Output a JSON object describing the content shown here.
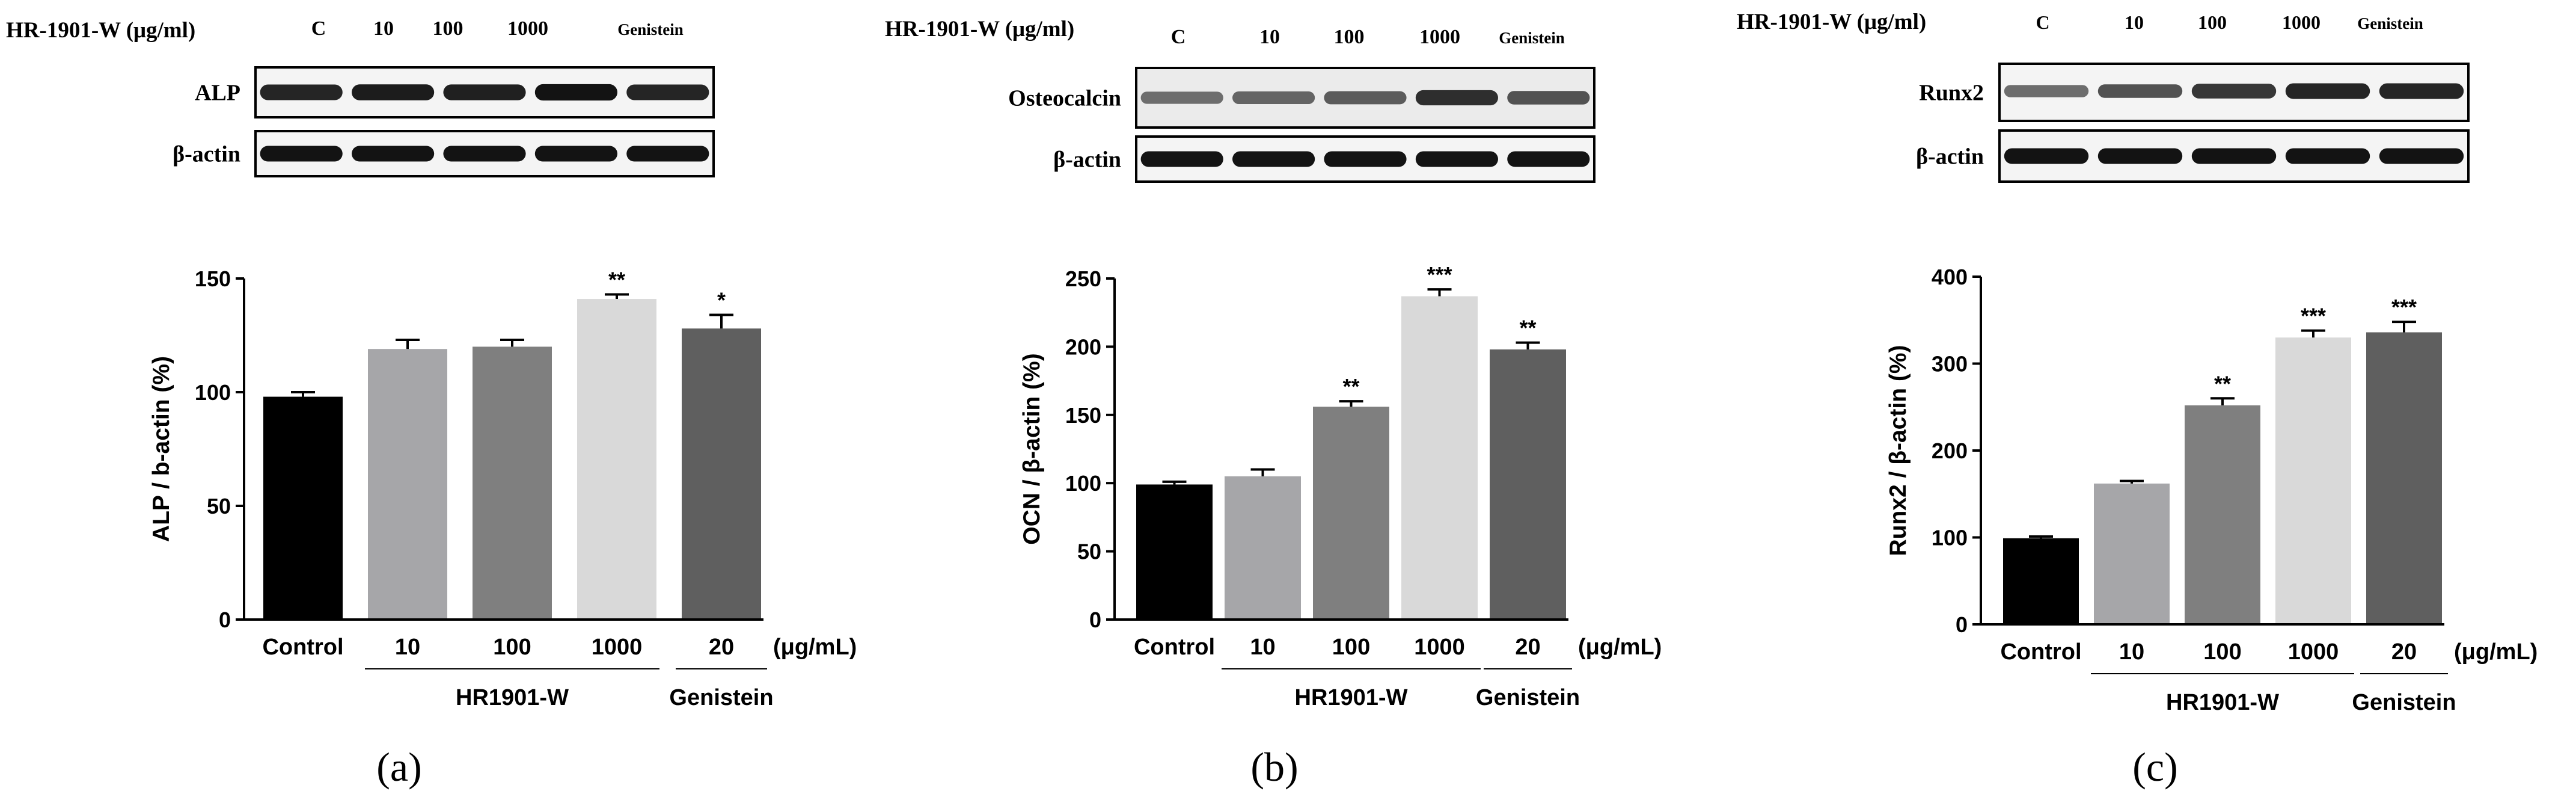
{
  "figure": {
    "colors": {
      "control": "#000000",
      "hr10": "#a6a6a9",
      "hr100": "#7f7f7f",
      "hr1000": "#d9d9d9",
      "genistein": "#5f5f5f"
    },
    "unit_label": "(μg/mL)",
    "group_label": "HR1901-W",
    "genistein_label": "Genistein"
  },
  "panels": [
    {
      "id": "a",
      "panel_label": "(a)",
      "blot": {
        "header_label": "HR-1901-W (μg/ml)",
        "lanes": [
          "C",
          "10",
          "100",
          "1000",
          "Genistein"
        ],
        "rows": [
          {
            "label": "ALP",
            "band_intensity": [
              0.85,
              0.9,
              0.88,
              0.95,
              0.85
            ]
          },
          {
            "label": "β-actin",
            "band_intensity": [
              0.95,
              0.95,
              0.95,
              0.95,
              0.95
            ]
          }
        ]
      }
    },
    {
      "id": "b",
      "panel_label": "(b)",
      "blot": {
        "header_label": "HR-1901-W (μg/ml)",
        "lanes": [
          "C",
          "10",
          "100",
          "1000",
          "Genistein"
        ],
        "rows": [
          {
            "label": "Osteocalcin",
            "band_intensity": [
              0.45,
              0.5,
              0.55,
              0.8,
              0.6
            ]
          },
          {
            "label": "β-actin",
            "band_intensity": [
              0.95,
              0.95,
              0.95,
              0.95,
              0.95
            ]
          }
        ]
      }
    },
    {
      "id": "c",
      "panel_label": "(c)",
      "blot": {
        "header_label": "HR-1901-W (μg/ml)",
        "lanes": [
          "C",
          "10",
          "100",
          "1000",
          "Genistein"
        ],
        "rows": [
          {
            "label": "Runx2",
            "band_intensity": [
              0.45,
              0.6,
              0.75,
              0.85,
              0.85
            ]
          },
          {
            "label": "β-actin",
            "band_intensity": [
              0.95,
              0.95,
              0.95,
              0.95,
              0.95
            ]
          }
        ]
      }
    }
  ],
  "chart_data": [
    {
      "panel": "a",
      "type": "bar",
      "categories": [
        "Control",
        "10",
        "100",
        "1000",
        "20"
      ],
      "values": [
        98,
        119,
        120,
        141,
        128
      ],
      "errors": [
        2,
        4,
        3,
        2,
        6
      ],
      "significance": [
        "",
        "",
        "",
        "**",
        "*"
      ],
      "ylabel": "ALP / b-actin (%)",
      "ylim": [
        0,
        150
      ],
      "yticks": [
        0,
        50,
        100,
        150
      ]
    },
    {
      "panel": "b",
      "type": "bar",
      "categories": [
        "Control",
        "10",
        "100",
        "1000",
        "20"
      ],
      "values": [
        99,
        105,
        156,
        237,
        198
      ],
      "errors": [
        2,
        5,
        4,
        5,
        5
      ],
      "significance": [
        "",
        "",
        "**",
        "***",
        "**"
      ],
      "ylabel": "OCN / β-actin (%)",
      "ylim": [
        0,
        250
      ],
      "yticks": [
        0,
        50,
        100,
        150,
        200,
        250
      ]
    },
    {
      "panel": "c",
      "type": "bar",
      "categories": [
        "Control",
        "10",
        "100",
        "1000",
        "20"
      ],
      "values": [
        99,
        162,
        252,
        330,
        336
      ],
      "errors": [
        2,
        3,
        8,
        8,
        12
      ],
      "significance": [
        "",
        "",
        "**",
        "***",
        "***"
      ],
      "ylabel": "Runx2 / β-actin (%)",
      "ylim": [
        0,
        400
      ],
      "yticks": [
        0,
        100,
        200,
        300,
        400
      ]
    }
  ]
}
